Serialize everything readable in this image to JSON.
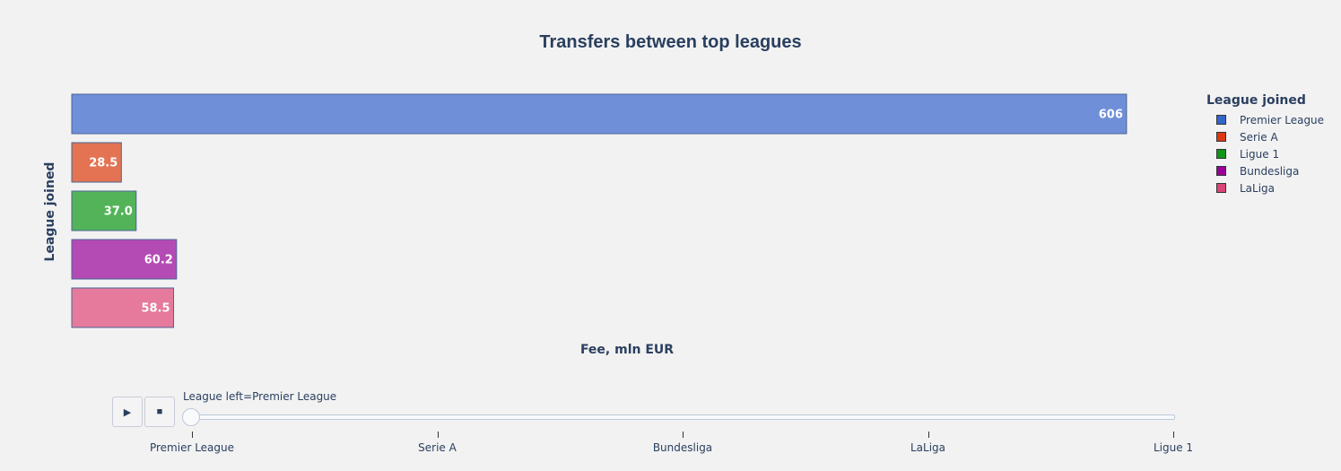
{
  "chart_data": {
    "type": "bar",
    "orientation": "horizontal",
    "title": "Transfers between top leagues",
    "xlabel": "Fee, mln EUR",
    "ylabel": "League joined",
    "xlim": [
      0,
      638
    ],
    "grid": false,
    "legend_placement": "top-right",
    "legend_title": "League joined",
    "series": [
      {
        "name": "Premier League",
        "value": 606,
        "label": "606",
        "color": "#6f8fd8",
        "legend_color": "#3366cc"
      },
      {
        "name": "Serie A",
        "value": 28.5,
        "label": "28.5",
        "color": "#e37353",
        "legend_color": "#dc3912"
      },
      {
        "name": "Ligue 1",
        "value": 37.0,
        "label": "37.0",
        "color": "#52b358",
        "legend_color": "#109618"
      },
      {
        "name": "Bundesliga",
        "value": 60.2,
        "label": "60.2",
        "color": "#b44bb4",
        "legend_color": "#990099"
      },
      {
        "name": "LaLiga",
        "value": 58.5,
        "label": "58.5",
        "color": "#e57a9c",
        "legend_color": "#dd4477"
      }
    ]
  },
  "slider": {
    "current_label": "League left=Premier League",
    "steps": [
      "Premier League",
      "Serie A",
      "Bundesliga",
      "LaLiga",
      "Ligue 1"
    ],
    "active_index": 0
  },
  "controls": {
    "play_symbol": "▶",
    "stop_symbol": "■"
  }
}
